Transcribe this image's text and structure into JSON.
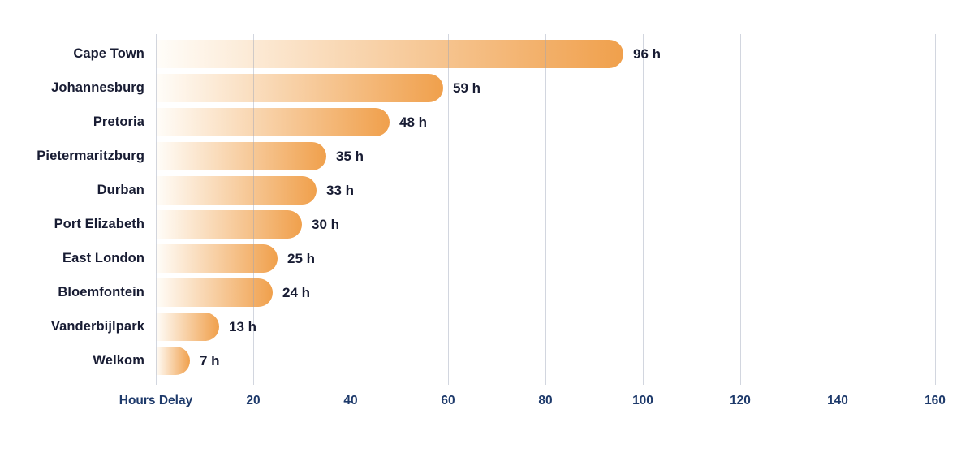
{
  "chart_data": {
    "type": "bar",
    "orientation": "horizontal",
    "title": "",
    "xlabel": "Hours Delay",
    "unit": "h",
    "categories": [
      "Cape Town",
      "Johannesburg",
      "Pretoria",
      "Pietermaritzburg",
      "Durban",
      "Port Elizabeth",
      "East London",
      "Bloemfontein",
      "Vanderbijlpark",
      "Welkom"
    ],
    "values": [
      96,
      59,
      48,
      35,
      33,
      30,
      25,
      24,
      13,
      7
    ],
    "value_labels": [
      "96 h",
      "59 h",
      "48 h",
      "35 h",
      "33 h",
      "30 h",
      "25 h",
      "24 h",
      "13 h",
      "7 h"
    ],
    "x_ticks": [
      20,
      40,
      60,
      80,
      100,
      120,
      140,
      160
    ],
    "xlim": [
      0,
      168
    ],
    "grid": true,
    "legend": false
  },
  "style": {
    "background": "#ffffff",
    "bar_gradient_start": "#fffdf9",
    "bar_gradient_end": "#f0a04c",
    "grid_color": "rgba(156,163,185,0.45)",
    "category_label_color": "#181c33",
    "value_label_color": "#181c33",
    "axis_label_color": "#1e3a6b"
  }
}
